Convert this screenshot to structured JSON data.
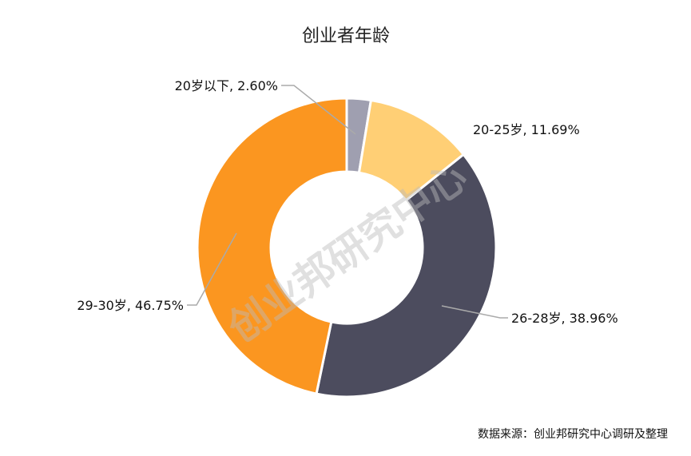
{
  "chart_data": {
    "type": "pie",
    "donut": true,
    "title": "创业者年龄",
    "categories": [
      "20岁以下",
      "20-25岁",
      "26-28岁",
      "29-30岁"
    ],
    "values": [
      2.6,
      11.69,
      38.96,
      46.75
    ],
    "labels": [
      "20岁以下, 2.60%",
      "20-25岁, 11.69%",
      "26-28岁, 38.96%",
      "29-30岁, 46.75%"
    ],
    "colors": [
      "#9f9fb0",
      "#ffcf75",
      "#4c4c5e",
      "#fb9620"
    ],
    "source": "数据来源：创业邦研究中心调研及整理",
    "watermark": "创业邦研究中心"
  }
}
